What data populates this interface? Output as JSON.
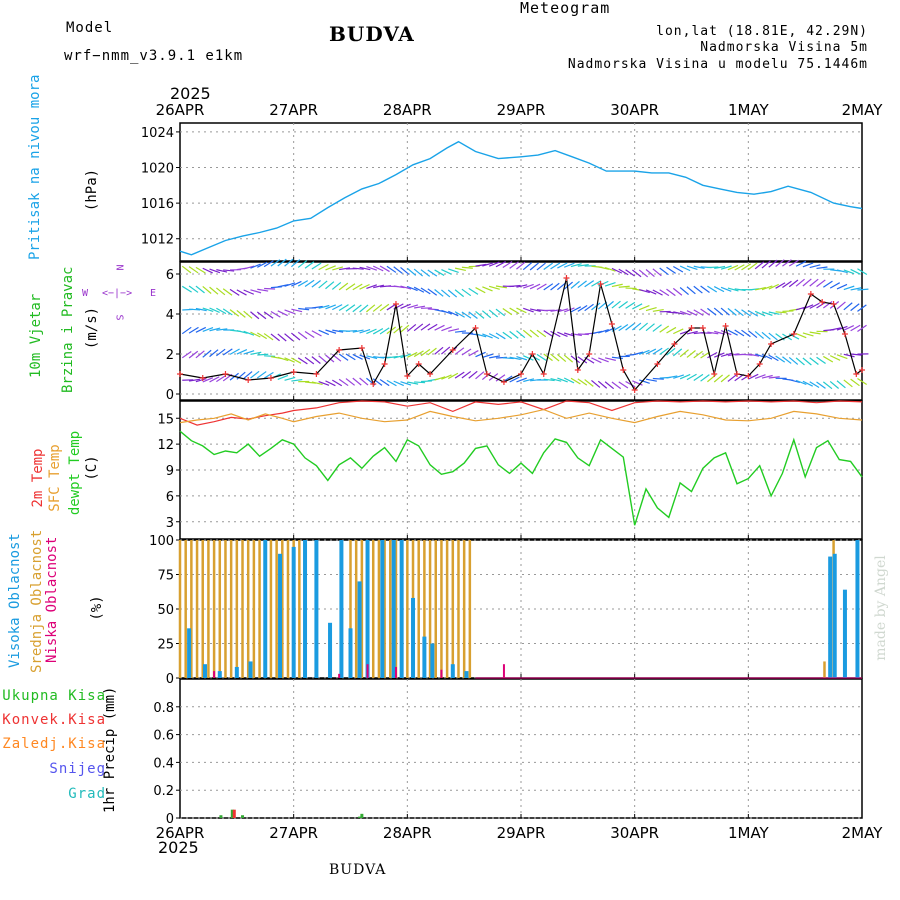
{
  "header": {
    "model_label": "Model",
    "model_name": "wrf−nmm_v3.9.1  e1km",
    "title": "BUDVA",
    "meteogram": "Meteogram",
    "lonlat": "lon,lat (18.81E, 42.29N)",
    "elevation": "Nadmorska Visina 5m",
    "model_elevation": "Nadmorska Visina u modelu 75.1446m"
  },
  "footer": {
    "station": "BUDVA",
    "credit": "made by Angel"
  },
  "colors": {
    "pressure": "#1aa3e8",
    "wind_label": "#22bb22",
    "temp2m": "#ee3333",
    "sfc_temp": "#e8a030",
    "dewpoint": "#22cc22",
    "high_cloud": "#1a9be0",
    "mid_cloud": "#d8a030",
    "low_cloud": "#dd0077",
    "precip_total": "#33aa33",
    "precip_conv": "#ee3333",
    "precip_frozen": "#ff8822",
    "snow": "#5555ee",
    "grad": "#22bbbb",
    "purple": "#9933cc",
    "grid": "#999999"
  },
  "time_axis": {
    "year": "2025",
    "ticks": [
      "26APR",
      "27APR",
      "28APR",
      "29APR",
      "30APR",
      "1MAY",
      "2MAY"
    ]
  },
  "panels": {
    "pressure": {
      "label": "Pritisak na nivou mora",
      "unit": "(hPa)"
    },
    "wind": {
      "label1": "10m Vjetar",
      "label2": "Brzina i Pravac",
      "unit": "(m/s)",
      "compass": {
        "n": "N",
        "s": "S",
        "e": "E",
        "w": "W"
      }
    },
    "temp": {
      "label1": "2m Temp",
      "label2": "SFC Temp",
      "label3": "dewpt Temp",
      "unit": "(C)"
    },
    "cloud": {
      "label1": "Visoka Oblacnost",
      "label2": "Srednja Oblacnost",
      "label3": "Niska Oblacnost",
      "unit": "(%)"
    },
    "precip": {
      "unit": "1hr Precip (mm)",
      "legend": [
        "Ukupna Kisa",
        "Konvek.Kisa",
        "Zaledj.Kisa",
        "Snijeg",
        "Grad"
      ]
    }
  },
  "chart_data": [
    {
      "type": "line",
      "title": "",
      "ylabel": "Pritisak na nivou mora (hPa)",
      "ylim": [
        1009.5,
        1025.0
      ],
      "yticks": [
        1012,
        1016,
        1020,
        1024
      ],
      "x_unit": "days since 2025-04-26 00Z",
      "series": [
        {
          "name": "Pritisak na nivou mora",
          "x": [
            0.0,
            0.1,
            0.25,
            0.4,
            0.55,
            0.7,
            0.85,
            1.0,
            1.15,
            1.3,
            1.45,
            1.6,
            1.75,
            1.9,
            2.05,
            2.2,
            2.35,
            2.45,
            2.6,
            2.8,
            3.0,
            3.15,
            3.3,
            3.45,
            3.6,
            3.75,
            3.9,
            4.0,
            4.15,
            4.3,
            4.45,
            4.6,
            4.75,
            4.9,
            5.05,
            5.2,
            5.35,
            5.55,
            5.75,
            5.9,
            6.0
          ],
          "y": [
            1010.6,
            1010.2,
            1011.0,
            1011.8,
            1012.3,
            1012.7,
            1013.2,
            1014.0,
            1014.3,
            1015.5,
            1016.6,
            1017.6,
            1018.2,
            1019.2,
            1020.3,
            1021.0,
            1022.2,
            1022.9,
            1021.8,
            1021.0,
            1021.2,
            1021.4,
            1021.9,
            1021.2,
            1020.5,
            1019.6,
            1019.6,
            1019.6,
            1019.4,
            1019.4,
            1018.9,
            1018.0,
            1017.6,
            1017.2,
            1017.0,
            1017.3,
            1017.9,
            1017.2,
            1016.0,
            1015.6,
            1015.4
          ]
        }
      ]
    },
    {
      "type": "line",
      "title": "",
      "ylabel": "10m Vjetar Brzina i Pravac (m/s)",
      "ylim": [
        -0.3,
        6.6
      ],
      "yticks": [
        0,
        2,
        4,
        6
      ],
      "x_unit": "days since 2025-04-26 00Z",
      "series": [
        {
          "name": "10m Vjetar",
          "x": [
            0.0,
            0.2,
            0.4,
            0.6,
            0.8,
            1.0,
            1.2,
            1.4,
            1.6,
            1.7,
            1.8,
            1.9,
            2.0,
            2.1,
            2.2,
            2.4,
            2.6,
            2.7,
            2.85,
            3.0,
            3.1,
            3.2,
            3.4,
            3.5,
            3.6,
            3.7,
            3.8,
            3.9,
            4.0,
            4.2,
            4.35,
            4.5,
            4.6,
            4.7,
            4.8,
            4.9,
            5.0,
            5.1,
            5.2,
            5.4,
            5.55,
            5.65,
            5.75,
            5.85,
            5.95,
            6.0
          ],
          "y": [
            1.0,
            0.8,
            1.0,
            0.7,
            0.8,
            1.1,
            1.0,
            2.2,
            2.3,
            0.5,
            1.5,
            4.5,
            0.9,
            1.5,
            1.0,
            2.2,
            3.3,
            1.0,
            0.6,
            1.0,
            2.0,
            1.0,
            5.8,
            1.2,
            2.0,
            5.5,
            3.5,
            1.2,
            0.2,
            1.5,
            2.5,
            3.3,
            3.3,
            1.0,
            3.4,
            1.0,
            0.9,
            1.5,
            2.5,
            3.0,
            5.0,
            4.6,
            4.5,
            3.0,
            1.0,
            1.2
          ]
        }
      ]
    },
    {
      "type": "line",
      "title": "",
      "ylabel": "Temp (C)",
      "ylim": [
        1.0,
        17.0
      ],
      "yticks": [
        3,
        6,
        9,
        12,
        15
      ],
      "x_unit": "days since 2025-04-26 00Z",
      "series": [
        {
          "name": "2m Temp",
          "x": [
            0.0,
            0.15,
            0.3,
            0.45,
            0.6,
            0.75,
            0.9,
            1.0,
            1.2,
            1.4,
            1.6,
            1.8,
            2.0,
            2.2,
            2.4,
            2.6,
            2.8,
            3.0,
            3.2,
            3.4,
            3.6,
            3.8,
            4.0,
            4.2,
            4.4,
            4.6,
            4.8,
            5.0,
            5.2,
            5.4,
            5.6,
            5.8,
            6.0
          ],
          "y": [
            15.0,
            14.2,
            14.6,
            15.1,
            14.9,
            15.3,
            15.6,
            15.9,
            16.2,
            16.8,
            17.0,
            16.9,
            16.4,
            16.8,
            15.8,
            16.9,
            16.6,
            16.9,
            16.0,
            17.0,
            16.8,
            15.9,
            16.8,
            17.0,
            16.9,
            17.0,
            16.9,
            17.0,
            16.9,
            17.0,
            16.8,
            17.0,
            16.9
          ]
        },
        {
          "name": "SFC Temp",
          "x": [
            0.0,
            0.15,
            0.3,
            0.45,
            0.6,
            0.75,
            0.9,
            1.0,
            1.2,
            1.4,
            1.6,
            1.8,
            2.0,
            2.2,
            2.4,
            2.6,
            2.8,
            3.0,
            3.2,
            3.4,
            3.6,
            3.8,
            4.0,
            4.2,
            4.4,
            4.6,
            4.8,
            5.0,
            5.2,
            5.4,
            5.6,
            5.8,
            6.0
          ],
          "y": [
            14.5,
            14.8,
            15.0,
            15.5,
            14.8,
            15.5,
            15.0,
            14.6,
            15.2,
            15.6,
            15.0,
            14.6,
            14.8,
            15.8,
            15.2,
            14.7,
            15.0,
            15.4,
            16.0,
            15.0,
            15.6,
            15.0,
            14.5,
            15.2,
            15.8,
            15.4,
            14.8,
            14.7,
            15.0,
            15.8,
            15.5,
            15.0,
            14.8
          ]
        },
        {
          "name": "dewpt Temp",
          "x": [
            0.0,
            0.1,
            0.2,
            0.3,
            0.4,
            0.5,
            0.6,
            0.7,
            0.8,
            0.9,
            1.0,
            1.1,
            1.2,
            1.3,
            1.4,
            1.5,
            1.6,
            1.7,
            1.8,
            1.9,
            2.0,
            2.1,
            2.2,
            2.3,
            2.4,
            2.5,
            2.6,
            2.7,
            2.8,
            2.9,
            3.0,
            3.1,
            3.2,
            3.3,
            3.4,
            3.5,
            3.6,
            3.7,
            3.8,
            3.9,
            4.0,
            4.1,
            4.2,
            4.3,
            4.4,
            4.5,
            4.6,
            4.7,
            4.8,
            4.9,
            5.0,
            5.1,
            5.2,
            5.3,
            5.4,
            5.5,
            5.6,
            5.7,
            5.8,
            5.9,
            6.0
          ],
          "y": [
            13.5,
            12.4,
            11.8,
            10.8,
            11.2,
            11.0,
            12.0,
            10.6,
            11.5,
            12.5,
            12.0,
            10.4,
            9.5,
            7.8,
            9.6,
            10.4,
            9.2,
            10.6,
            11.6,
            10.0,
            12.5,
            11.8,
            9.6,
            8.5,
            8.8,
            9.8,
            11.5,
            11.8,
            9.6,
            8.6,
            9.8,
            8.6,
            11.0,
            12.6,
            12.2,
            10.4,
            9.5,
            12.5,
            11.5,
            10.5,
            2.6,
            6.8,
            4.6,
            3.5,
            7.5,
            6.5,
            9.2,
            10.4,
            11.0,
            7.4,
            8.0,
            9.5,
            6.0,
            8.6,
            12.5,
            8.2,
            11.6,
            12.4,
            10.2,
            10.0,
            8.2
          ]
        }
      ]
    },
    {
      "type": "bar",
      "title": "",
      "ylabel": "Oblacnost (%)",
      "ylim": [
        0,
        100
      ],
      "yticks": [
        0,
        25,
        50,
        75,
        100
      ],
      "x_unit": "days since 2025-04-26 00Z",
      "series": [
        {
          "name": "Visoka Oblacnost",
          "x": [
            0.08,
            0.22,
            0.35,
            0.5,
            0.62,
            0.75,
            0.88,
            1.0,
            1.1,
            1.2,
            1.32,
            1.42,
            1.5,
            1.58,
            1.65,
            1.78,
            1.88,
            1.95,
            2.05,
            2.15,
            2.22,
            2.4,
            2.52,
            5.72,
            5.76,
            5.85,
            5.96
          ],
          "y": [
            36,
            10,
            5,
            8,
            12,
            100,
            90,
            95,
            100,
            100,
            40,
            100,
            36,
            70,
            100,
            100,
            100,
            100,
            58,
            30,
            25,
            10,
            5,
            88,
            90,
            64,
            100
          ]
        },
        {
          "name": "Srednja Oblacnost",
          "x": [
            0.0,
            0.05,
            0.1,
            0.15,
            0.2,
            0.25,
            0.3,
            0.35,
            0.4,
            0.45,
            0.5,
            0.55,
            0.6,
            0.65,
            0.7,
            0.75,
            0.8,
            0.85,
            0.9,
            0.95,
            1.0,
            1.05,
            1.1,
            1.2,
            1.5,
            1.55,
            1.6,
            1.7,
            1.75,
            1.8,
            1.85,
            1.9,
            1.95,
            2.0,
            2.05,
            2.1,
            2.15,
            2.2,
            2.25,
            2.3,
            2.35,
            2.4,
            2.45,
            2.5,
            2.55,
            5.67,
            5.75
          ],
          "y": [
            100,
            100,
            100,
            100,
            100,
            100,
            100,
            100,
            100,
            100,
            100,
            100,
            100,
            100,
            100,
            100,
            100,
            100,
            100,
            100,
            100,
            100,
            100,
            100,
            100,
            100,
            100,
            100,
            100,
            100,
            100,
            100,
            100,
            100,
            100,
            100,
            100,
            100,
            100,
            100,
            100,
            100,
            100,
            100,
            100,
            12,
            100
          ]
        },
        {
          "name": "Niska Oblacnost",
          "x": [
            0.3,
            1.4,
            1.65,
            1.9,
            2.3,
            2.85
          ],
          "y": [
            5,
            3,
            10,
            8,
            6,
            10
          ]
        }
      ]
    },
    {
      "type": "bar",
      "title": "",
      "ylabel": "1hr Precip (mm)",
      "ylim": [
        0,
        1.0
      ],
      "yticks": [
        0,
        0.2,
        0.4,
        0.6,
        0.8
      ],
      "x_unit": "days since 2025-04-26 00Z",
      "series": [
        {
          "name": "Ukupna Kisa",
          "x": [
            0.36,
            0.46,
            0.55,
            1.58,
            1.6
          ],
          "y": [
            0.02,
            0.06,
            0.02,
            0.01,
            0.03
          ]
        },
        {
          "name": "Konvek.Kisa",
          "x": [
            0.46
          ],
          "y": [
            0.06
          ]
        }
      ]
    }
  ]
}
